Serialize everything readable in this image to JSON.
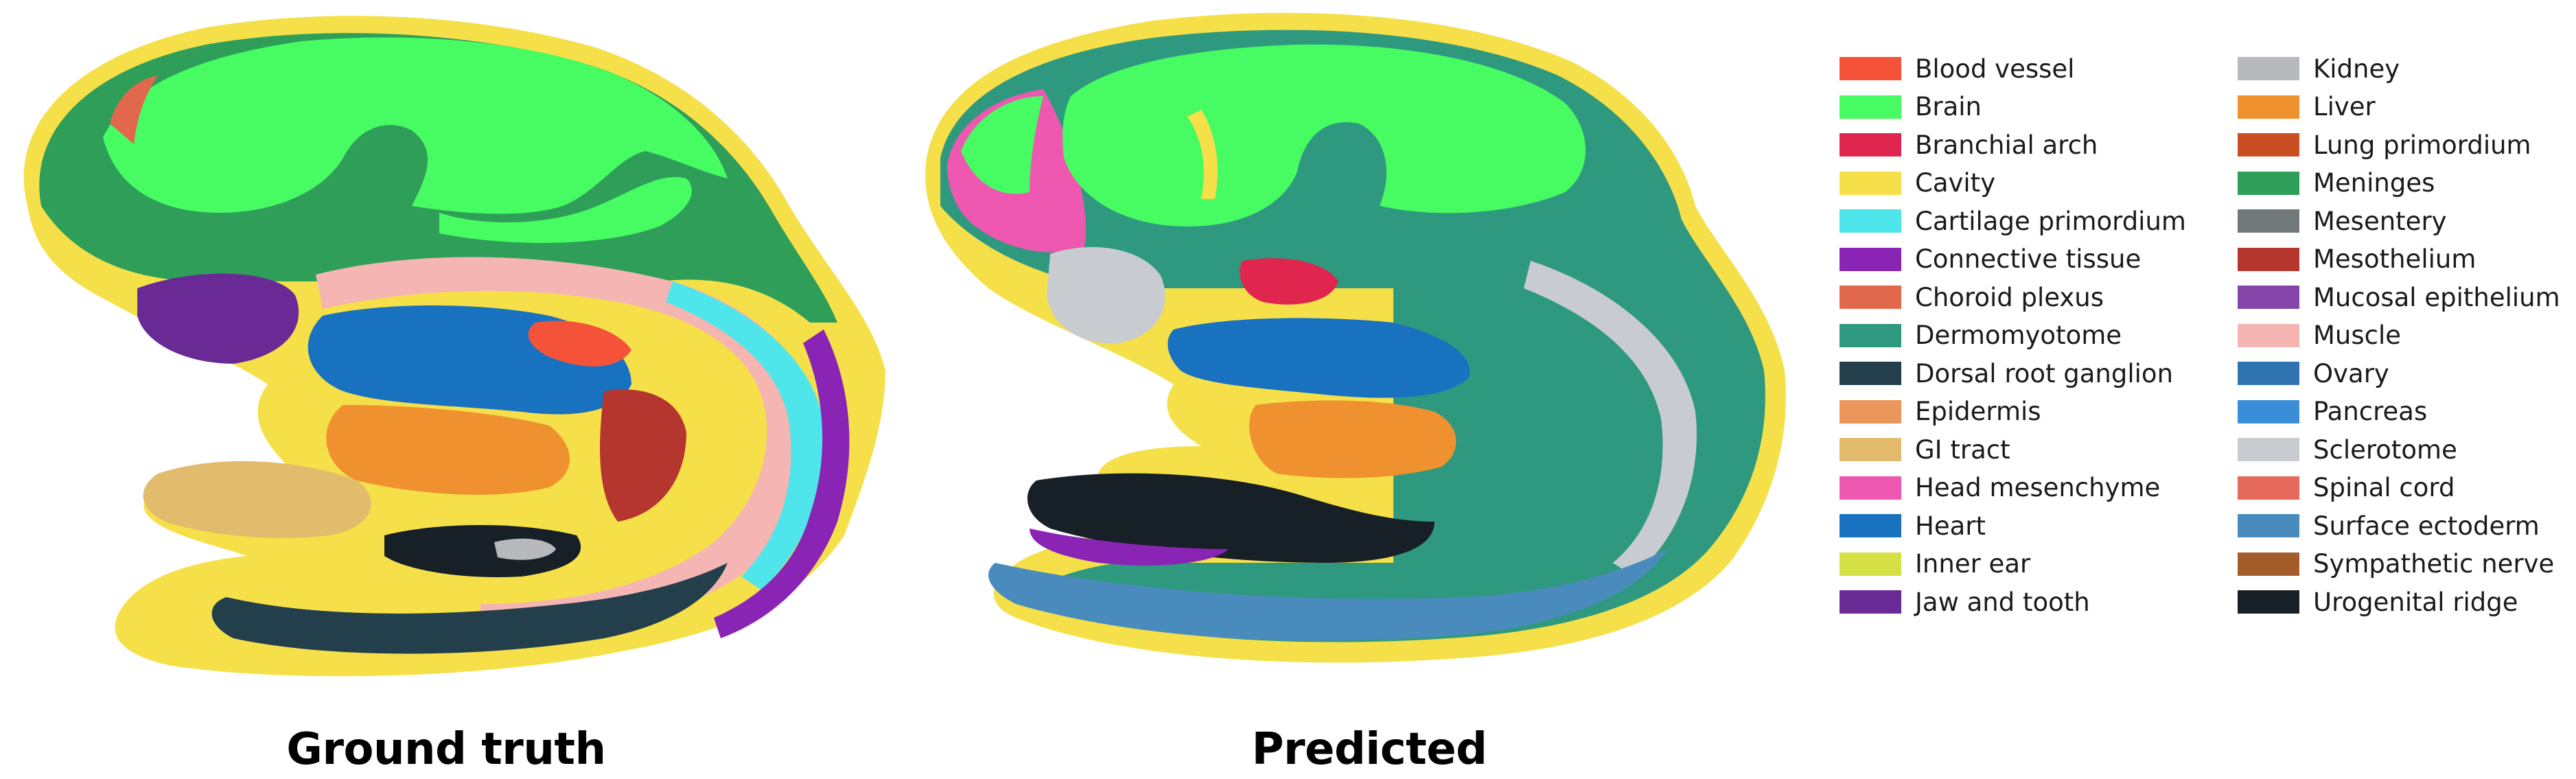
{
  "panels": {
    "ground_truth": {
      "caption": "Ground truth"
    },
    "predicted": {
      "caption": "Predicted"
    }
  },
  "legend": {
    "columns": [
      [
        {
          "label": "Blood vessel",
          "color": "#f4533a"
        },
        {
          "label": "Brain",
          "color": "#47fb62"
        },
        {
          "label": "Branchial arch",
          "color": "#e0264f"
        },
        {
          "label": "Cavity",
          "color": "#f5e04a"
        },
        {
          "label": "Cartilage primordium",
          "color": "#4ee6ea"
        },
        {
          "label": "Connective tissue",
          "color": "#8a24b5"
        },
        {
          "label": "Choroid plexus",
          "color": "#e1684c"
        },
        {
          "label": "Dermomyotome",
          "color": "#2f9980"
        },
        {
          "label": "Dorsal root ganglion",
          "color": "#233f4c"
        },
        {
          "label": "Epidermis",
          "color": "#ec965b"
        },
        {
          "label": "GI tract",
          "color": "#e2bc6c"
        },
        {
          "label": "Head mesenchyme",
          "color": "#ee58b0"
        },
        {
          "label": "Heart",
          "color": "#1872bf"
        },
        {
          "label": "Inner ear",
          "color": "#d5e044"
        },
        {
          "label": "Jaw and tooth",
          "color": "#6a2a95"
        }
      ],
      [
        {
          "label": "Kidney",
          "color": "#b7b9bd"
        },
        {
          "label": "Liver",
          "color": "#f0912f"
        },
        {
          "label": "Lung primordium",
          "color": "#cb4d23"
        },
        {
          "label": "Meninges",
          "color": "#2e9e59"
        },
        {
          "label": "Mesentery",
          "color": "#71787a"
        },
        {
          "label": "Mesothelium",
          "color": "#b5362f"
        },
        {
          "label": "Mucosal epithelium",
          "color": "#8645a8"
        },
        {
          "label": "Muscle",
          "color": "#f5b5b2"
        },
        {
          "label": "Ovary",
          "color": "#2f74b0"
        },
        {
          "label": "Pancreas",
          "color": "#3a8dd7"
        },
        {
          "label": "Sclerotome",
          "color": "#c8ccd0"
        },
        {
          "label": "Spinal cord",
          "color": "#e56a5c"
        },
        {
          "label": "Surface ectoderm",
          "color": "#4a8bbe"
        },
        {
          "label": "Sympathetic nerve",
          "color": "#a45d2a"
        },
        {
          "label": "Urogenital ridge",
          "color": "#171f27"
        }
      ]
    ]
  }
}
